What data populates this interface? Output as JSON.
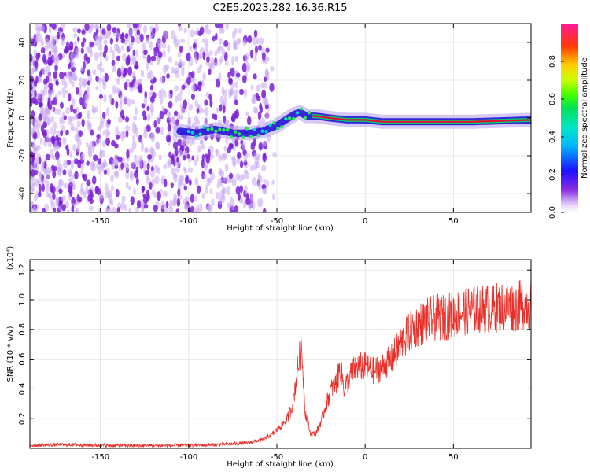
{
  "title": "C2E5.2023.282.16.36.R15",
  "colors": {
    "spectrogram_noise": "#7a1fd6",
    "snr_line": "#e8302a",
    "ridge_core": "#e0103a",
    "ridge_halo": "#1a0bd8"
  },
  "chart_data": [
    {
      "type": "heatmap",
      "xlabel": "Height of straight line (km)",
      "ylabel": "Frequency (Hz)",
      "xlim": [
        -190,
        94
      ],
      "ylim": [
        -50,
        50
      ],
      "xticks": [
        "-150",
        "-100",
        "-50",
        "0",
        "50"
      ],
      "xtick_values": [
        -150,
        -100,
        -50,
        0,
        50
      ],
      "yticks": [
        "40",
        "20",
        "0",
        "-20",
        "-40"
      ],
      "ytick_values": [
        40,
        20,
        0,
        -20,
        -40
      ],
      "colorbar": {
        "label": "Normalized spectral amplitude",
        "range": [
          0,
          1
        ],
        "ticks": [
          "0.0",
          "0.2",
          "0.4",
          "0.6",
          "0.8"
        ],
        "tick_values": [
          0.0,
          0.2,
          0.4,
          0.6,
          0.8
        ]
      },
      "ridge_center_hz": {
        "x": [
          -105,
          -95,
          -85,
          -75,
          -65,
          -58,
          -50,
          -45,
          -40,
          -37,
          -33,
          -28,
          -20,
          -10,
          0,
          10,
          30,
          60,
          94
        ],
        "y": [
          -7,
          -8,
          -6,
          -8,
          -8,
          -7,
          -4,
          -1,
          2,
          3,
          1,
          1,
          0,
          -1,
          -1,
          -2,
          -2,
          -2,
          -1
        ]
      },
      "grid": true
    },
    {
      "type": "line",
      "xlabel": "Height of straight line (km)",
      "ylabel": "SNR (10 * v/v)",
      "yscale_note": "(x10⁴)",
      "xlim": [
        -190,
        94
      ],
      "ylim": [
        0,
        1.27
      ],
      "xticks": [
        "-150",
        "-100",
        "-50",
        "0",
        "50"
      ],
      "xtick_values": [
        -150,
        -100,
        -50,
        0,
        50
      ],
      "yticks": [
        "0.2",
        "0.4",
        "0.6",
        "0.8",
        "1.0",
        "1.2"
      ],
      "ytick_values": [
        0.2,
        0.4,
        0.6,
        0.8,
        1.0,
        1.2
      ],
      "series": [
        {
          "x": [
            -190,
            -170,
            -150,
            -130,
            -110,
            -90,
            -75,
            -65,
            -58,
            -52,
            -48,
            -44,
            -41,
            -38,
            -36,
            -34,
            -31,
            -28,
            -25,
            -22,
            -19,
            -16,
            -14,
            -12,
            -10,
            -8,
            -5,
            0,
            5,
            10,
            15,
            20,
            25,
            30,
            35,
            40,
            45,
            50,
            55,
            60,
            65,
            70,
            75,
            80,
            85,
            90,
            94
          ],
          "y": [
            0.02,
            0.025,
            0.02,
            0.018,
            0.02,
            0.022,
            0.03,
            0.04,
            0.06,
            0.1,
            0.15,
            0.2,
            0.3,
            0.55,
            0.7,
            0.25,
            0.1,
            0.1,
            0.18,
            0.3,
            0.4,
            0.45,
            0.55,
            0.4,
            0.45,
            0.5,
            0.55,
            0.55,
            0.52,
            0.55,
            0.6,
            0.7,
            0.78,
            0.83,
            0.86,
            0.88,
            0.88,
            0.9,
            0.92,
            0.93,
            0.94,
            0.94,
            0.95,
            0.96,
            0.95,
            0.97,
            0.96
          ]
        }
      ],
      "grid": true
    }
  ]
}
